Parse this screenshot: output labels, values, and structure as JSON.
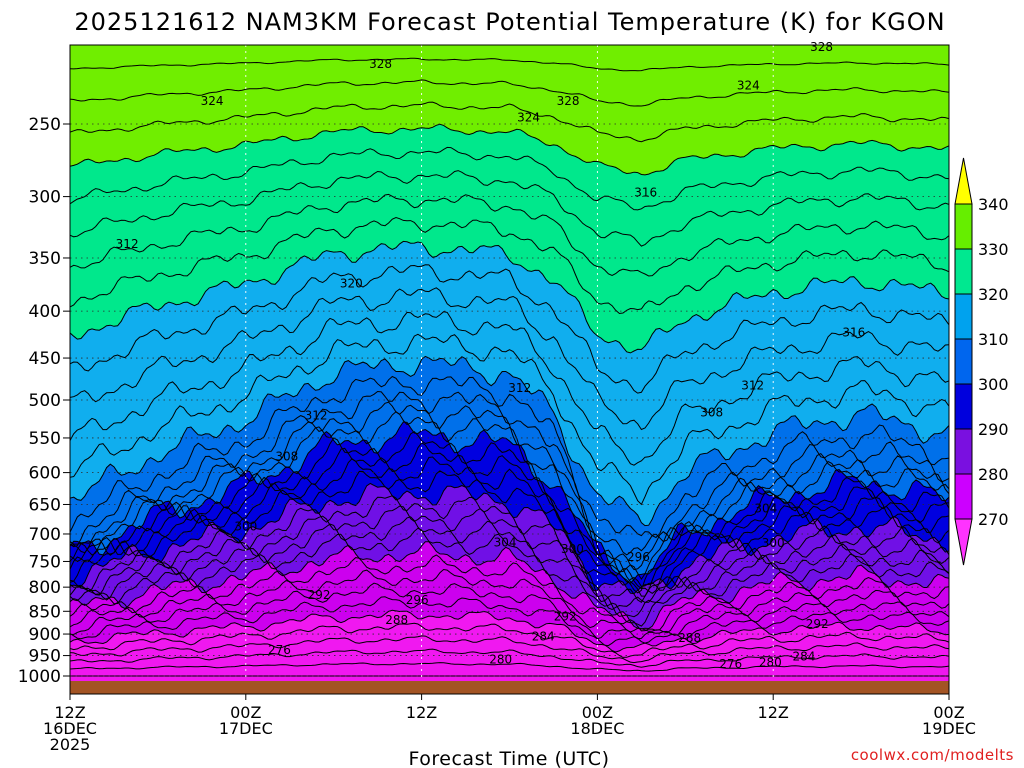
{
  "chart_data": {
    "type": "contour",
    "title": "2025121612 NAM3KM Forecast Potential Temperature (K) for KGON",
    "xlabel": "Forecast Time (UTC)",
    "ylabel": "",
    "credit": "coolwx.com/modelts",
    "y_ticks": [
      250,
      300,
      350,
      400,
      450,
      500,
      550,
      600,
      650,
      700,
      750,
      800,
      850,
      900,
      950,
      1000
    ],
    "ylim": [
      1030,
      200
    ],
    "x_ticks": [
      {
        "hour": 0,
        "line1": "12Z",
        "line2": "16DEC",
        "line3": "2025"
      },
      {
        "hour": 12,
        "line1": "00Z",
        "line2": "17DEC",
        "line3": ""
      },
      {
        "hour": 24,
        "line1": "12Z",
        "line2": "",
        "line3": ""
      },
      {
        "hour": 36,
        "line1": "00Z",
        "line2": "18DEC",
        "line3": ""
      },
      {
        "hour": 48,
        "line1": "12Z",
        "line2": "",
        "line3": ""
      },
      {
        "hour": 60,
        "line1": "00Z",
        "line2": "19DEC",
        "line3": ""
      }
    ],
    "xlim": [
      0,
      60
    ],
    "colorbar": {
      "levels": [
        270,
        280,
        290,
        300,
        310,
        320,
        330,
        340
      ],
      "colors": [
        "#ff33ff",
        "#cc00ff",
        "#7a10e0",
        "#0000dd",
        "#0066ee",
        "#00a2ee",
        "#00e890",
        "#66ee00",
        "#ffff00"
      ]
    },
    "band_colors": [
      {
        "theta": 270,
        "color": "#f018f0"
      },
      {
        "theta": 280,
        "color": "#cc00ee"
      },
      {
        "theta": 290,
        "color": "#7010e6"
      },
      {
        "theta": 300,
        "color": "#0000e0"
      },
      {
        "theta": 310,
        "color": "#0070ea"
      },
      {
        "theta": 320,
        "color": "#10aeee"
      },
      {
        "theta": 330,
        "color": "#00e88c"
      },
      {
        "theta": 340,
        "color": "#70ee00"
      },
      {
        "theta": 350,
        "color": "#ffff00"
      }
    ],
    "contour_labels": [
      {
        "text": "328",
        "hour": 21.2,
        "p": 215
      },
      {
        "text": "324",
        "hour": 9.7,
        "p": 236
      },
      {
        "text": "328",
        "hour": 34.0,
        "p": 236
      },
      {
        "text": "324",
        "hour": 31.3,
        "p": 246
      },
      {
        "text": "324",
        "hour": 46.3,
        "p": 227
      },
      {
        "text": "328",
        "hour": 51.3,
        "p": 206
      },
      {
        "text": "316",
        "hour": 39.3,
        "p": 297
      },
      {
        "text": "312",
        "hour": 3.9,
        "p": 338
      },
      {
        "text": "320",
        "hour": 19.2,
        "p": 373
      },
      {
        "text": "316",
        "hour": 53.5,
        "p": 422
      },
      {
        "text": "312",
        "hour": 30.7,
        "p": 485
      },
      {
        "text": "312",
        "hour": 46.6,
        "p": 482
      },
      {
        "text": "308",
        "hour": 43.8,
        "p": 516
      },
      {
        "text": "312",
        "hour": 16.8,
        "p": 520
      },
      {
        "text": "308",
        "hour": 14.8,
        "p": 576
      },
      {
        "text": "304",
        "hour": 47.5,
        "p": 657
      },
      {
        "text": "300",
        "hour": 12.0,
        "p": 687
      },
      {
        "text": "304",
        "hour": 29.7,
        "p": 715
      },
      {
        "text": "300",
        "hour": 34.3,
        "p": 727
      },
      {
        "text": "296",
        "hour": 38.8,
        "p": 742
      },
      {
        "text": "300",
        "hour": 48.0,
        "p": 716
      },
      {
        "text": "292",
        "hour": 17.0,
        "p": 816
      },
      {
        "text": "296",
        "hour": 23.7,
        "p": 826
      },
      {
        "text": "288",
        "hour": 22.3,
        "p": 869
      },
      {
        "text": "292",
        "hour": 33.8,
        "p": 861
      },
      {
        "text": "292",
        "hour": 51.0,
        "p": 878
      },
      {
        "text": "284",
        "hour": 32.3,
        "p": 906
      },
      {
        "text": "288",
        "hour": 42.3,
        "p": 909
      },
      {
        "text": "276",
        "hour": 14.3,
        "p": 937
      },
      {
        "text": "280",
        "hour": 29.4,
        "p": 960
      },
      {
        "text": "284",
        "hour": 50.1,
        "p": 952
      },
      {
        "text": "276",
        "hour": 45.1,
        "p": 970
      },
      {
        "text": "280",
        "hour": 47.8,
        "p": 967
      }
    ]
  }
}
